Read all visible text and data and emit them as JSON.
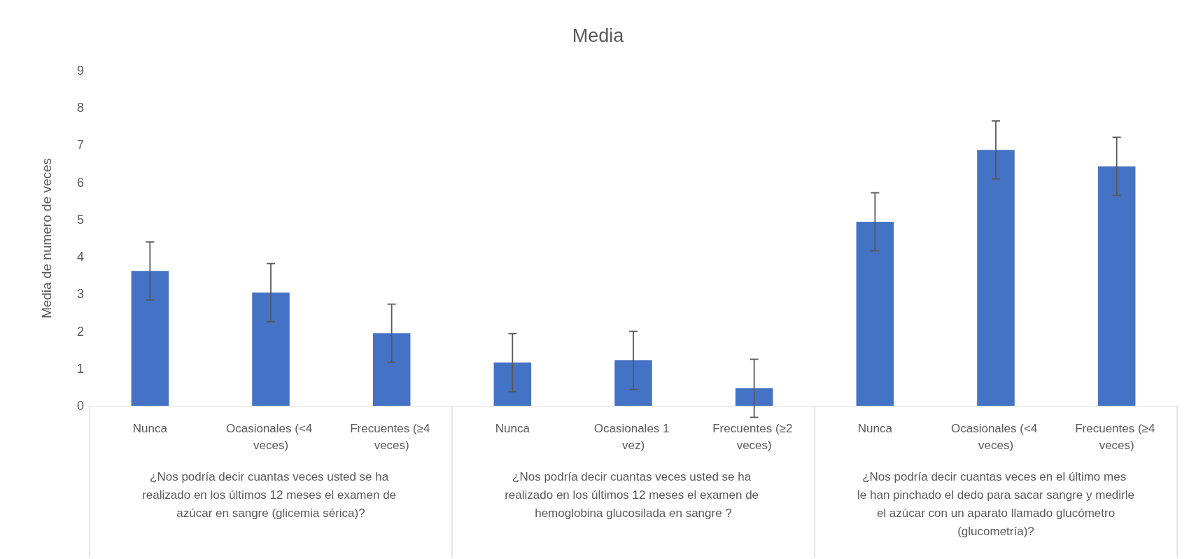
{
  "chart_data": {
    "type": "bar",
    "title": "Media",
    "ylabel": "Media de numero de veces",
    "categories": [
      "Nunca",
      "Ocasionales (<4 veces)",
      "Frecuentes (≥4 veces)",
      "Nunca",
      "Ocasionales 1 vez)",
      "Frecuentes (≥2 veces)",
      "Nunca",
      "Ocasionales (<4 veces)",
      "Frecuentes (≥4 veces)"
    ],
    "values": [
      3.62,
      3.04,
      1.95,
      1.16,
      1.22,
      0.47,
      4.94,
      6.87,
      6.43
    ],
    "errors": [
      0.78,
      0.78,
      0.78,
      0.78,
      0.78,
      0.78,
      0.78,
      0.78,
      0.78
    ],
    "color": "#4472c4",
    "ylim": [
      0,
      9
    ],
    "yticks": [
      0,
      1,
      2,
      3,
      4,
      5,
      6,
      7,
      8,
      9
    ],
    "grid": false,
    "annotations": [
      "¿Nos podría decir cuantas veces usted se ha realizado en los últimos 12 meses el examen de azúcar en sangre (glicemia sérica)?",
      "¿Nos podría decir cuantas veces usted se ha realizado en los últimos 12 meses el examen de hemoglobina glucosilada en sangre ?",
      "¿Nos podría decir cuantas veces en el último mes le han pinchado el dedo para sacar sangre y medirle el azúcar con un aparato llamado glucómetro (glucometría)?"
    ]
  }
}
